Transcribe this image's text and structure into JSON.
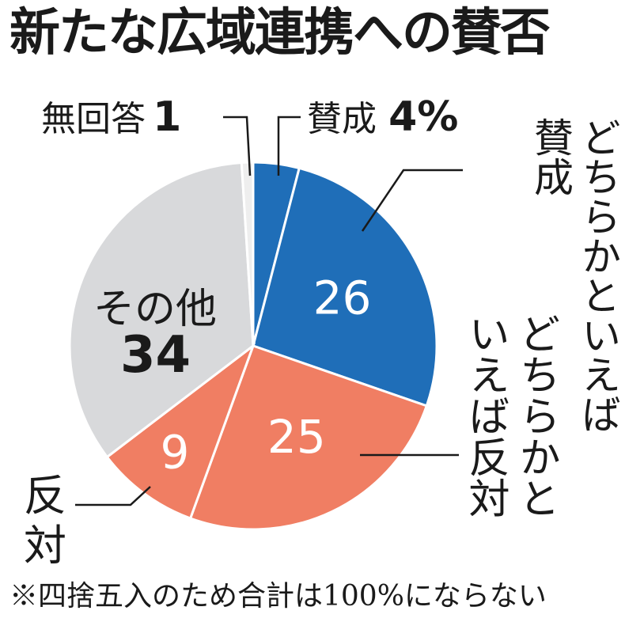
{
  "chart_data": {
    "type": "pie",
    "title": "新たな広域連携への賛否",
    "slices": [
      {
        "label": "賛成",
        "value": 4,
        "value_label": "4%",
        "color": "#1f6eb8"
      },
      {
        "label": "どちらかといえば賛成",
        "value": 26,
        "value_label": "26",
        "color": "#1f6eb8"
      },
      {
        "label": "どちらかといえば反対",
        "value": 25,
        "value_label": "25",
        "color": "#f07e63"
      },
      {
        "label": "反対",
        "value": 9,
        "value_label": "9",
        "color": "#f07e63"
      },
      {
        "label": "その他",
        "value": 34,
        "value_label": "34",
        "color": "#d8d9db"
      },
      {
        "label": "無回答",
        "value": 1,
        "value_label": "1",
        "color": "#eeeeee"
      }
    ],
    "start": "12 o'clock",
    "direction": "clockwise",
    "note": "※四捨五入のため合計は100%にならない"
  },
  "labels": {
    "yes_label": "賛成",
    "yes_value": "4%",
    "no_answer_label": "無回答",
    "no_answer_value": "1",
    "rather_yes_line1": "どちらかといえば",
    "rather_yes_line2": "賛成",
    "rather_no_line1": "どちらかと",
    "rather_no_line2": "いえば反対",
    "no_line1": "反",
    "no_line2": "対",
    "other_label": "その他",
    "other_value": "34"
  }
}
